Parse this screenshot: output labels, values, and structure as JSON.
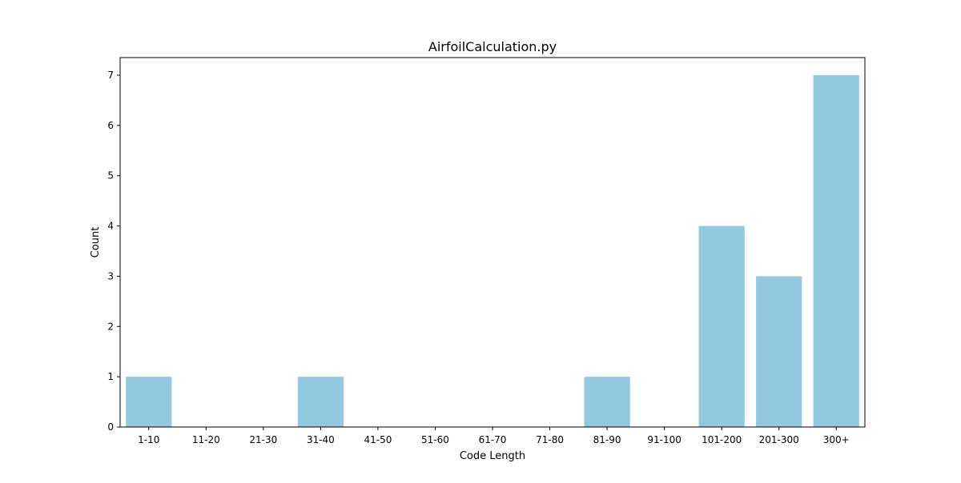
{
  "chart_data": {
    "type": "bar",
    "title": "AirfoilCalculation.py",
    "xlabel": "Code Length",
    "ylabel": "Count",
    "categories": [
      "1-10",
      "11-20",
      "21-30",
      "31-40",
      "41-50",
      "51-60",
      "61-70",
      "71-80",
      "81-90",
      "91-100",
      "101-200",
      "201-300",
      "300+"
    ],
    "values": [
      1,
      0,
      0,
      1,
      0,
      0,
      0,
      0,
      1,
      0,
      4,
      3,
      7
    ],
    "ylim": [
      0,
      7.35
    ],
    "yticks": [
      0,
      1,
      2,
      3,
      4,
      5,
      6,
      7
    ],
    "grid": false,
    "legend": false,
    "bar_color": "#92c9df"
  }
}
